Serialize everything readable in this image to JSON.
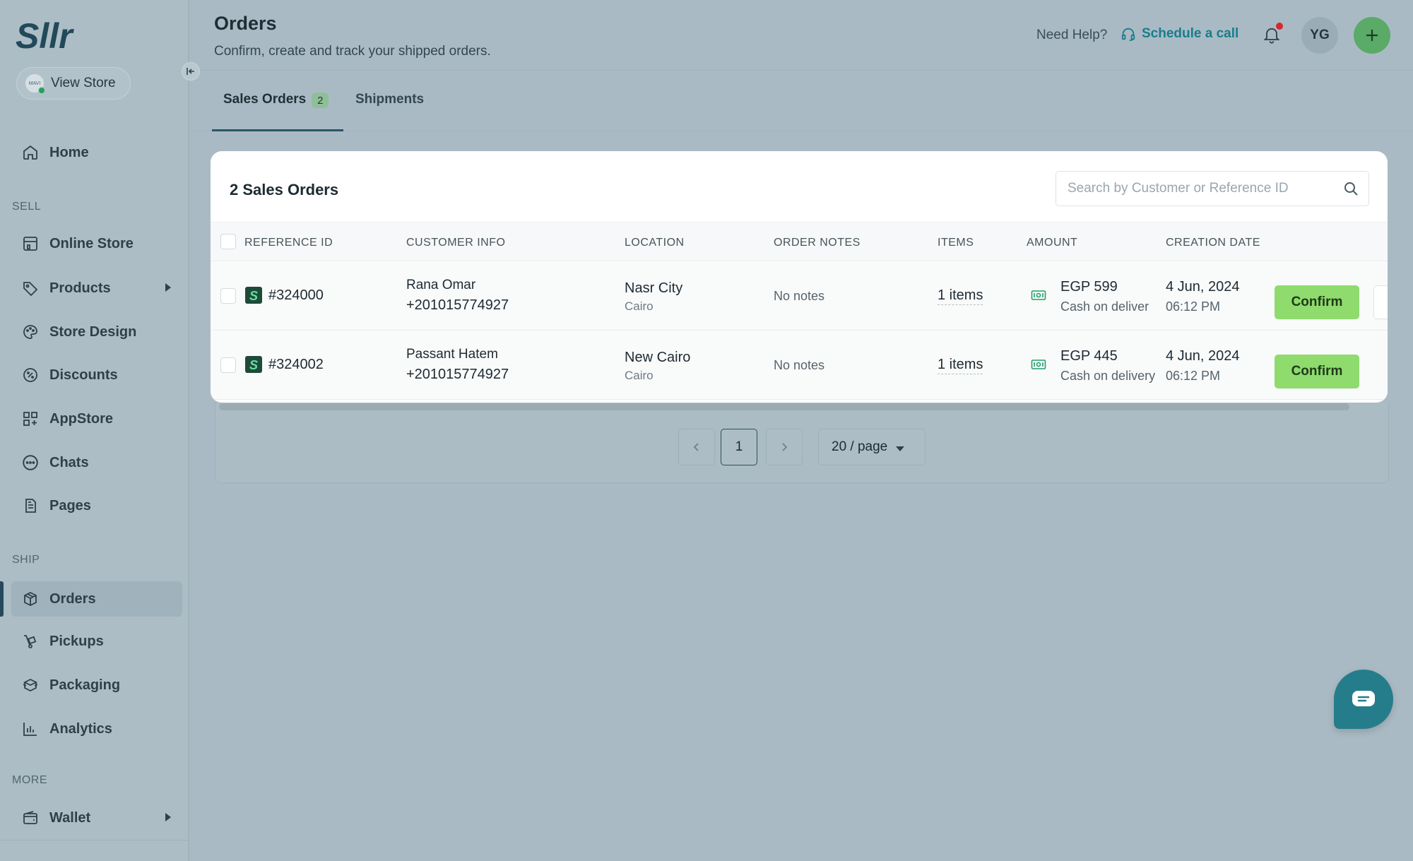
{
  "brand": {
    "logo_text": "Sllr"
  },
  "sidebar": {
    "view_store": {
      "label": "View Store",
      "avatar_text": "MAVI"
    },
    "sections": {
      "sell": "SELL",
      "ship": "SHIP",
      "more": "MORE"
    },
    "items": [
      {
        "label": "Home",
        "icon": "home-icon"
      },
      {
        "label": "Online Store",
        "icon": "store-icon"
      },
      {
        "label": "Products",
        "icon": "tag-icon",
        "expandable": true
      },
      {
        "label": "Store Design",
        "icon": "palette-icon"
      },
      {
        "label": "Discounts",
        "icon": "discount-icon"
      },
      {
        "label": "AppStore",
        "icon": "apps-icon"
      },
      {
        "label": "Chats",
        "icon": "chat-icon"
      },
      {
        "label": "Pages",
        "icon": "document-icon"
      },
      {
        "label": "Orders",
        "icon": "box-icon",
        "active": true
      },
      {
        "label": "Pickups",
        "icon": "dolly-icon"
      },
      {
        "label": "Packaging",
        "icon": "package-icon"
      },
      {
        "label": "Analytics",
        "icon": "chart-icon"
      },
      {
        "label": "Wallet",
        "icon": "wallet-icon",
        "expandable": true
      }
    ]
  },
  "header": {
    "title": "Orders",
    "subtitle": "Confirm, create and track your shipped orders.",
    "help_text": "Need Help?",
    "schedule_label": "Schedule a call",
    "avatar_initials": "YG",
    "accent": "#177e8c"
  },
  "tabs": [
    {
      "label": "Sales Orders",
      "badge": "2",
      "active": true
    },
    {
      "label": "Shipments",
      "active": false
    }
  ],
  "orders": {
    "title": "2 Sales Orders",
    "search_placeholder": "Search by Customer or Reference ID",
    "columns": [
      "REFERENCE ID",
      "CUSTOMER INFO",
      "LOCATION",
      "ORDER NOTES",
      "ITEMS",
      "AMOUNT",
      "CREATION DATE"
    ],
    "rows": [
      {
        "ref": "#324000",
        "name": "Rana Omar",
        "phone": "+201015774927",
        "city": "Nasr City",
        "governorate": "Cairo",
        "notes": "No notes",
        "items": "1 items",
        "amount": "EGP 599",
        "payment": "Cash on deliver",
        "date": "4 Jun, 2024",
        "time": "06:12 PM",
        "action": "Confirm"
      },
      {
        "ref": "#324002",
        "name": "Passant Hatem",
        "phone": "+201015774927",
        "city": "New Cairo",
        "governorate": "Cairo",
        "notes": "No notes",
        "items": "1 items",
        "amount": "EGP 445",
        "payment": "Cash on delivery",
        "date": "4 Jun, 2024",
        "time": "06:12 PM",
        "action": "Confirm"
      }
    ],
    "confirm_color": "#8fdb6e"
  },
  "pagination": {
    "current_page": "1",
    "per_page": "20 / page"
  }
}
